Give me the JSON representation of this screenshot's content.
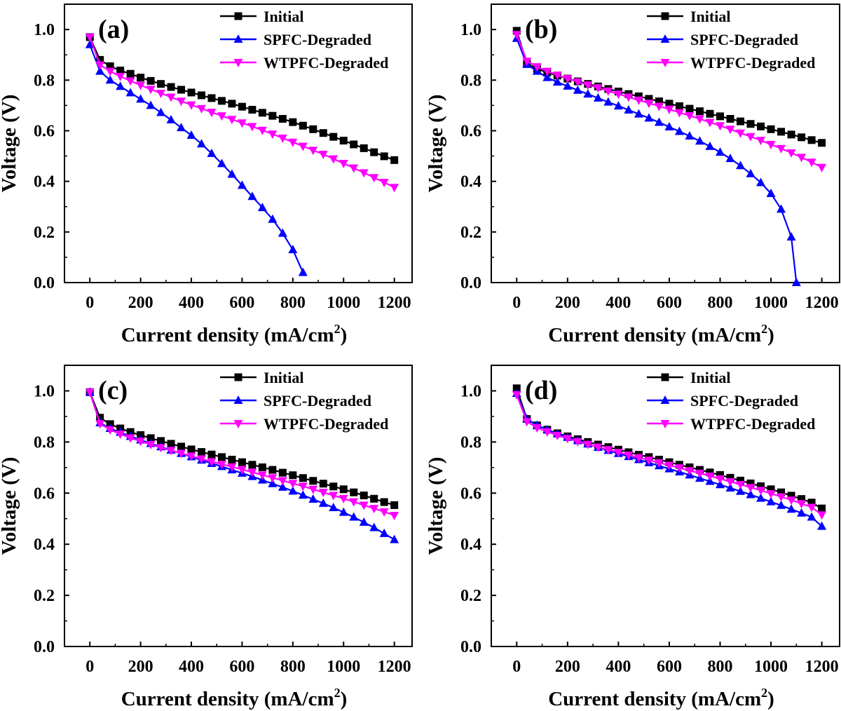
{
  "chart_data": [
    {
      "type": "line",
      "panel_label": "(a)",
      "xlabel": "Current density (mA/cm",
      "xlabel_sup": "2",
      "xlabel_end": ")",
      "ylabel": "Voltage (V)",
      "xlim": [
        -100,
        1270
      ],
      "ylim": [
        0,
        1.1
      ],
      "xticks": [
        "0",
        "200",
        "400",
        "600",
        "800",
        "1000",
        "1200"
      ],
      "yticks": [
        "0.0",
        "0.2",
        "0.4",
        "0.6",
        "0.8",
        "1.0"
      ],
      "legend_position": "top-right",
      "series": [
        {
          "name": "Initial",
          "color": "#000000",
          "marker": "square",
          "x": [
            0,
            40,
            80,
            120,
            160,
            200,
            240,
            280,
            320,
            360,
            400,
            440,
            480,
            520,
            560,
            600,
            640,
            680,
            720,
            760,
            800,
            840,
            880,
            920,
            960,
            1000,
            1040,
            1080,
            1120,
            1160,
            1200
          ],
          "y": [
            0.97,
            0.88,
            0.855,
            0.838,
            0.825,
            0.81,
            0.797,
            0.785,
            0.773,
            0.762,
            0.751,
            0.74,
            0.729,
            0.718,
            0.707,
            0.695,
            0.683,
            0.671,
            0.659,
            0.647,
            0.634,
            0.62,
            0.606,
            0.591,
            0.576,
            0.561,
            0.546,
            0.531,
            0.515,
            0.499,
            0.484
          ]
        },
        {
          "name": "SPFC-Degraded",
          "color": "#0000ff",
          "marker": "triangle-up",
          "x": [
            0,
            40,
            80,
            120,
            160,
            200,
            240,
            280,
            320,
            360,
            400,
            440,
            480,
            520,
            560,
            600,
            640,
            680,
            720,
            760,
            800,
            840
          ],
          "y": [
            0.94,
            0.835,
            0.8,
            0.775,
            0.75,
            0.725,
            0.7,
            0.672,
            0.643,
            0.612,
            0.582,
            0.548,
            0.51,
            0.47,
            0.428,
            0.384,
            0.34,
            0.296,
            0.25,
            0.195,
            0.13,
            0.04
          ]
        },
        {
          "name": "WTPFC-Degraded",
          "color": "#ff00ff",
          "marker": "triangle-down",
          "x": [
            0,
            40,
            80,
            120,
            160,
            200,
            240,
            280,
            320,
            360,
            400,
            440,
            480,
            520,
            560,
            600,
            640,
            680,
            720,
            760,
            800,
            840,
            880,
            920,
            960,
            1000,
            1040,
            1080,
            1120,
            1160,
            1200
          ],
          "y": [
            0.97,
            0.86,
            0.835,
            0.815,
            0.797,
            0.78,
            0.764,
            0.748,
            0.733,
            0.717,
            0.702,
            0.688,
            0.673,
            0.659,
            0.645,
            0.631,
            0.617,
            0.602,
            0.587,
            0.571,
            0.555,
            0.539,
            0.523,
            0.507,
            0.489,
            0.471,
            0.453,
            0.434,
            0.415,
            0.396,
            0.376
          ]
        }
      ]
    },
    {
      "type": "line",
      "panel_label": "(b)",
      "xlabel": "Current density (mA/cm",
      "xlabel_sup": "2",
      "xlabel_end": ")",
      "ylabel": "Voltage (V)",
      "xlim": [
        -100,
        1270
      ],
      "ylim": [
        0,
        1.1
      ],
      "xticks": [
        "0",
        "200",
        "400",
        "600",
        "800",
        "1000",
        "1200"
      ],
      "yticks": [
        "0.0",
        "0.2",
        "0.4",
        "0.6",
        "0.8",
        "1.0"
      ],
      "legend_position": "top-right",
      "series": [
        {
          "name": "Initial",
          "color": "#000000",
          "marker": "square",
          "x": [
            0,
            40,
            80,
            120,
            160,
            200,
            240,
            280,
            320,
            360,
            400,
            440,
            480,
            520,
            560,
            600,
            640,
            680,
            720,
            760,
            800,
            840,
            880,
            920,
            960,
            1000,
            1040,
            1080,
            1120,
            1160,
            1200
          ],
          "y": [
            0.995,
            0.865,
            0.845,
            0.83,
            0.818,
            0.806,
            0.795,
            0.785,
            0.775,
            0.765,
            0.755,
            0.745,
            0.736,
            0.726,
            0.716,
            0.707,
            0.697,
            0.687,
            0.677,
            0.667,
            0.657,
            0.647,
            0.637,
            0.627,
            0.617,
            0.606,
            0.596,
            0.585,
            0.574,
            0.563,
            0.552
          ]
        },
        {
          "name": "SPFC-Degraded",
          "color": "#0000ff",
          "marker": "triangle-up",
          "x": [
            0,
            40,
            80,
            120,
            160,
            200,
            240,
            280,
            320,
            360,
            400,
            440,
            480,
            520,
            560,
            600,
            640,
            680,
            720,
            760,
            800,
            840,
            880,
            920,
            960,
            1000,
            1040,
            1080,
            1100
          ],
          "y": [
            0.965,
            0.862,
            0.835,
            0.81,
            0.792,
            0.776,
            0.76,
            0.745,
            0.729,
            0.713,
            0.698,
            0.682,
            0.666,
            0.65,
            0.633,
            0.615,
            0.597,
            0.579,
            0.559,
            0.538,
            0.515,
            0.49,
            0.462,
            0.43,
            0.395,
            0.352,
            0.29,
            0.18,
            0.0
          ]
        },
        {
          "name": "WTPFC-Degraded",
          "color": "#ff00ff",
          "marker": "triangle-down",
          "x": [
            0,
            40,
            80,
            120,
            160,
            200,
            240,
            280,
            320,
            360,
            400,
            440,
            480,
            520,
            560,
            600,
            640,
            680,
            720,
            760,
            800,
            840,
            880,
            920,
            960,
            1000,
            1040,
            1080,
            1120,
            1160,
            1200
          ],
          "y": [
            0.98,
            0.875,
            0.853,
            0.835,
            0.82,
            0.806,
            0.793,
            0.781,
            0.77,
            0.757,
            0.745,
            0.733,
            0.721,
            0.709,
            0.697,
            0.685,
            0.672,
            0.66,
            0.647,
            0.633,
            0.62,
            0.606,
            0.591,
            0.577,
            0.562,
            0.546,
            0.53,
            0.513,
            0.495,
            0.476,
            0.455
          ]
        }
      ]
    },
    {
      "type": "line",
      "panel_label": "(c)",
      "xlabel": "Current density (mA/cm",
      "xlabel_sup": "2",
      "xlabel_end": ")",
      "ylabel": "Voltage (V)",
      "xlim": [
        -100,
        1270
      ],
      "ylim": [
        0,
        1.1
      ],
      "xticks": [
        "0",
        "200",
        "400",
        "600",
        "800",
        "1000",
        "1200"
      ],
      "yticks": [
        "0.0",
        "0.2",
        "0.4",
        "0.6",
        "0.8",
        "1.0"
      ],
      "legend_position": "top-right",
      "series": [
        {
          "name": "Initial",
          "color": "#000000",
          "marker": "square",
          "x": [
            0,
            40,
            80,
            120,
            160,
            200,
            240,
            280,
            320,
            360,
            400,
            440,
            480,
            520,
            560,
            600,
            640,
            680,
            720,
            760,
            800,
            840,
            880,
            920,
            960,
            1000,
            1040,
            1080,
            1120,
            1160,
            1200
          ],
          "y": [
            0.995,
            0.895,
            0.87,
            0.853,
            0.839,
            0.827,
            0.815,
            0.804,
            0.793,
            0.782,
            0.771,
            0.761,
            0.751,
            0.741,
            0.731,
            0.721,
            0.711,
            0.701,
            0.691,
            0.68,
            0.67,
            0.659,
            0.648,
            0.637,
            0.626,
            0.615,
            0.603,
            0.591,
            0.578,
            0.565,
            0.553
          ]
        },
        {
          "name": "SPFC-Degraded",
          "color": "#0000ff",
          "marker": "triangle-up",
          "x": [
            0,
            40,
            80,
            120,
            160,
            200,
            240,
            280,
            320,
            360,
            400,
            440,
            480,
            520,
            560,
            600,
            640,
            680,
            720,
            760,
            800,
            840,
            880,
            920,
            960,
            1000,
            1040,
            1080,
            1120,
            1160,
            1200
          ],
          "y": [
            0.995,
            0.875,
            0.853,
            0.838,
            0.822,
            0.808,
            0.794,
            0.781,
            0.768,
            0.755,
            0.742,
            0.729,
            0.716,
            0.704,
            0.691,
            0.678,
            0.665,
            0.651,
            0.637,
            0.623,
            0.608,
            0.592,
            0.576,
            0.56,
            0.543,
            0.525,
            0.506,
            0.486,
            0.465,
            0.442,
            0.418
          ]
        },
        {
          "name": "WTPFC-Degraded",
          "color": "#ff00ff",
          "marker": "triangle-down",
          "x": [
            0,
            40,
            80,
            120,
            160,
            200,
            240,
            280,
            320,
            360,
            400,
            440,
            480,
            520,
            560,
            600,
            640,
            680,
            720,
            760,
            800,
            840,
            880,
            920,
            960,
            1000,
            1040,
            1080,
            1120,
            1160,
            1200
          ],
          "y": [
            0.995,
            0.872,
            0.848,
            0.831,
            0.816,
            0.803,
            0.79,
            0.778,
            0.767,
            0.756,
            0.745,
            0.734,
            0.723,
            0.713,
            0.703,
            0.692,
            0.682,
            0.671,
            0.66,
            0.649,
            0.638,
            0.627,
            0.615,
            0.603,
            0.591,
            0.579,
            0.566,
            0.553,
            0.54,
            0.527,
            0.513
          ]
        }
      ]
    },
    {
      "type": "line",
      "panel_label": "(d)",
      "xlabel": "Current density (mA/cm",
      "xlabel_sup": "2",
      "xlabel_end": ")",
      "ylabel": "Voltage (V)",
      "xlim": [
        -100,
        1270
      ],
      "ylim": [
        0,
        1.1
      ],
      "xticks": [
        "0",
        "200",
        "400",
        "600",
        "800",
        "1000",
        "1200"
      ],
      "yticks": [
        "0.0",
        "0.2",
        "0.4",
        "0.6",
        "0.8",
        "1.0"
      ],
      "legend_position": "top-right",
      "series": [
        {
          "name": "Initial",
          "color": "#000000",
          "marker": "square",
          "x": [
            0,
            40,
            80,
            120,
            160,
            200,
            240,
            280,
            320,
            360,
            400,
            440,
            480,
            520,
            560,
            600,
            640,
            680,
            720,
            760,
            800,
            840,
            880,
            920,
            960,
            1000,
            1040,
            1080,
            1120,
            1160,
            1200
          ],
          "y": [
            1.01,
            0.89,
            0.865,
            0.848,
            0.834,
            0.822,
            0.811,
            0.8,
            0.79,
            0.78,
            0.77,
            0.76,
            0.75,
            0.741,
            0.731,
            0.721,
            0.711,
            0.701,
            0.691,
            0.681,
            0.671,
            0.66,
            0.649,
            0.638,
            0.627,
            0.615,
            0.603,
            0.59,
            0.577,
            0.563,
            0.54
          ]
        },
        {
          "name": "SPFC-Degraded",
          "color": "#0000ff",
          "marker": "triangle-up",
          "x": [
            0,
            40,
            80,
            120,
            160,
            200,
            240,
            280,
            320,
            360,
            400,
            440,
            480,
            520,
            560,
            600,
            640,
            680,
            720,
            760,
            800,
            840,
            880,
            920,
            960,
            1000,
            1040,
            1080,
            1120,
            1160,
            1200
          ],
          "y": [
            0.99,
            0.89,
            0.865,
            0.848,
            0.832,
            0.818,
            0.805,
            0.792,
            0.779,
            0.767,
            0.755,
            0.743,
            0.731,
            0.719,
            0.707,
            0.695,
            0.683,
            0.671,
            0.658,
            0.646,
            0.633,
            0.62,
            0.607,
            0.594,
            0.58,
            0.566,
            0.552,
            0.537,
            0.522,
            0.506,
            0.47
          ]
        },
        {
          "name": "WTPFC-Degraded",
          "color": "#ff00ff",
          "marker": "triangle-down",
          "x": [
            0,
            40,
            80,
            120,
            160,
            200,
            240,
            280,
            320,
            360,
            400,
            440,
            480,
            520,
            560,
            600,
            640,
            680,
            720,
            760,
            800,
            840,
            880,
            920,
            960,
            1000,
            1040,
            1080,
            1120,
            1160,
            1200
          ],
          "y": [
            0.985,
            0.88,
            0.856,
            0.84,
            0.826,
            0.814,
            0.802,
            0.791,
            0.78,
            0.77,
            0.76,
            0.749,
            0.739,
            0.729,
            0.719,
            0.709,
            0.699,
            0.688,
            0.678,
            0.667,
            0.656,
            0.645,
            0.634,
            0.622,
            0.611,
            0.598,
            0.586,
            0.573,
            0.559,
            0.545,
            0.515
          ]
        }
      ]
    }
  ]
}
